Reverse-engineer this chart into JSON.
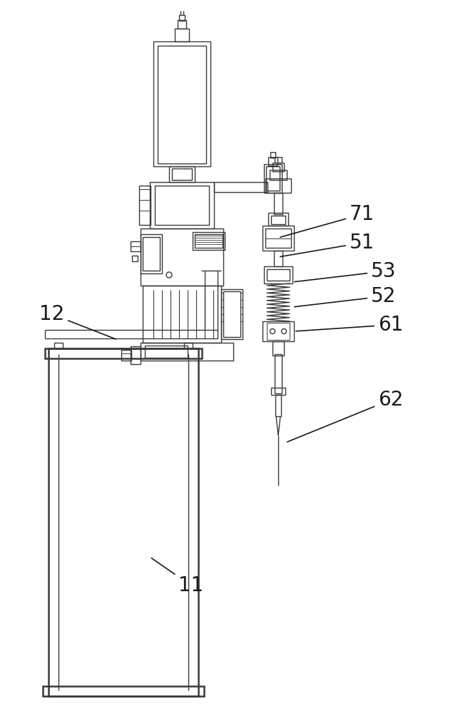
{
  "bg_color": "#ffffff",
  "lc": "#3a3a3a",
  "lw": 1.0,
  "tlw": 1.8,
  "label_fontsize": 20,
  "label_color": "#1a1a1a"
}
